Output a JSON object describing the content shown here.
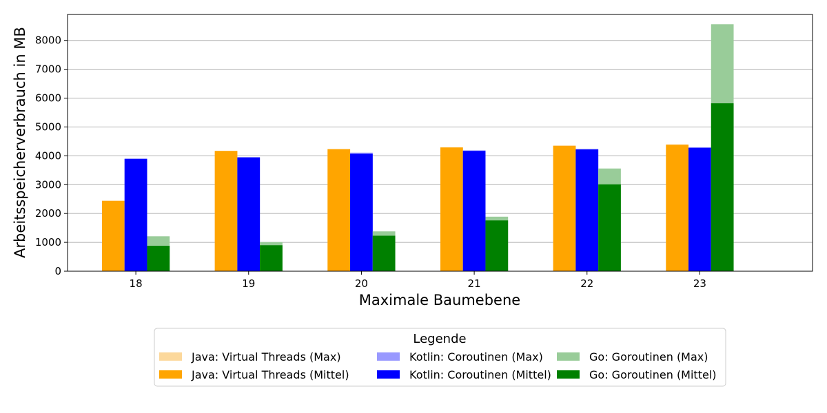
{
  "chart_data": {
    "type": "bar",
    "title": "",
    "xlabel": "Maximale Baumebene",
    "ylabel": "Arbeitsspeicherverbrauch in MB",
    "categories": [
      "18",
      "19",
      "20",
      "21",
      "22",
      "23"
    ],
    "ylim": [
      0,
      8900
    ],
    "yticks": [
      0,
      1000,
      2000,
      3000,
      4000,
      5000,
      6000,
      7000,
      8000
    ],
    "grid": "horizontal",
    "legend_title": "Legende",
    "legend_position": "bottom-center",
    "groups": [
      {
        "language": "Java",
        "max": {
          "name": "Java: Virtual Threads (Max)",
          "color": "#fcd89b",
          "values": [
            2440,
            4170,
            4230,
            4290,
            4350,
            4400
          ]
        },
        "mean": {
          "name": "Java: Virtual Threads (Mittel)",
          "color": "#ffa500",
          "values": [
            2440,
            4170,
            4230,
            4290,
            4350,
            4380
          ]
        }
      },
      {
        "language": "Kotlin",
        "max": {
          "name": "Kotlin: Coroutinen (Max)",
          "color": "#9999ff",
          "values": [
            3910,
            3960,
            4110,
            4190,
            4240,
            4290
          ]
        },
        "mean": {
          "name": "Kotlin: Coroutinen (Mittel)",
          "color": "#0000ff",
          "values": [
            3890,
            3940,
            4070,
            4170,
            4220,
            4280
          ]
        }
      },
      {
        "language": "Go",
        "max": {
          "name": "Go: Goroutinen (Max)",
          "color": "#99cc99",
          "values": [
            1210,
            1010,
            1380,
            1890,
            3560,
            8560
          ]
        },
        "mean": {
          "name": "Go: Goroutinen (Mittel)",
          "color": "#008000",
          "values": [
            880,
            900,
            1230,
            1760,
            3010,
            5820
          ]
        }
      }
    ],
    "legend_order": [
      "Java: Virtual Threads (Max)",
      "Kotlin: Coroutinen (Max)",
      "Go: Goroutinen (Max)",
      "Java: Virtual Threads (Mittel)",
      "Kotlin: Coroutinen (Mittel)",
      "Go: Goroutinen (Mittel)"
    ]
  }
}
